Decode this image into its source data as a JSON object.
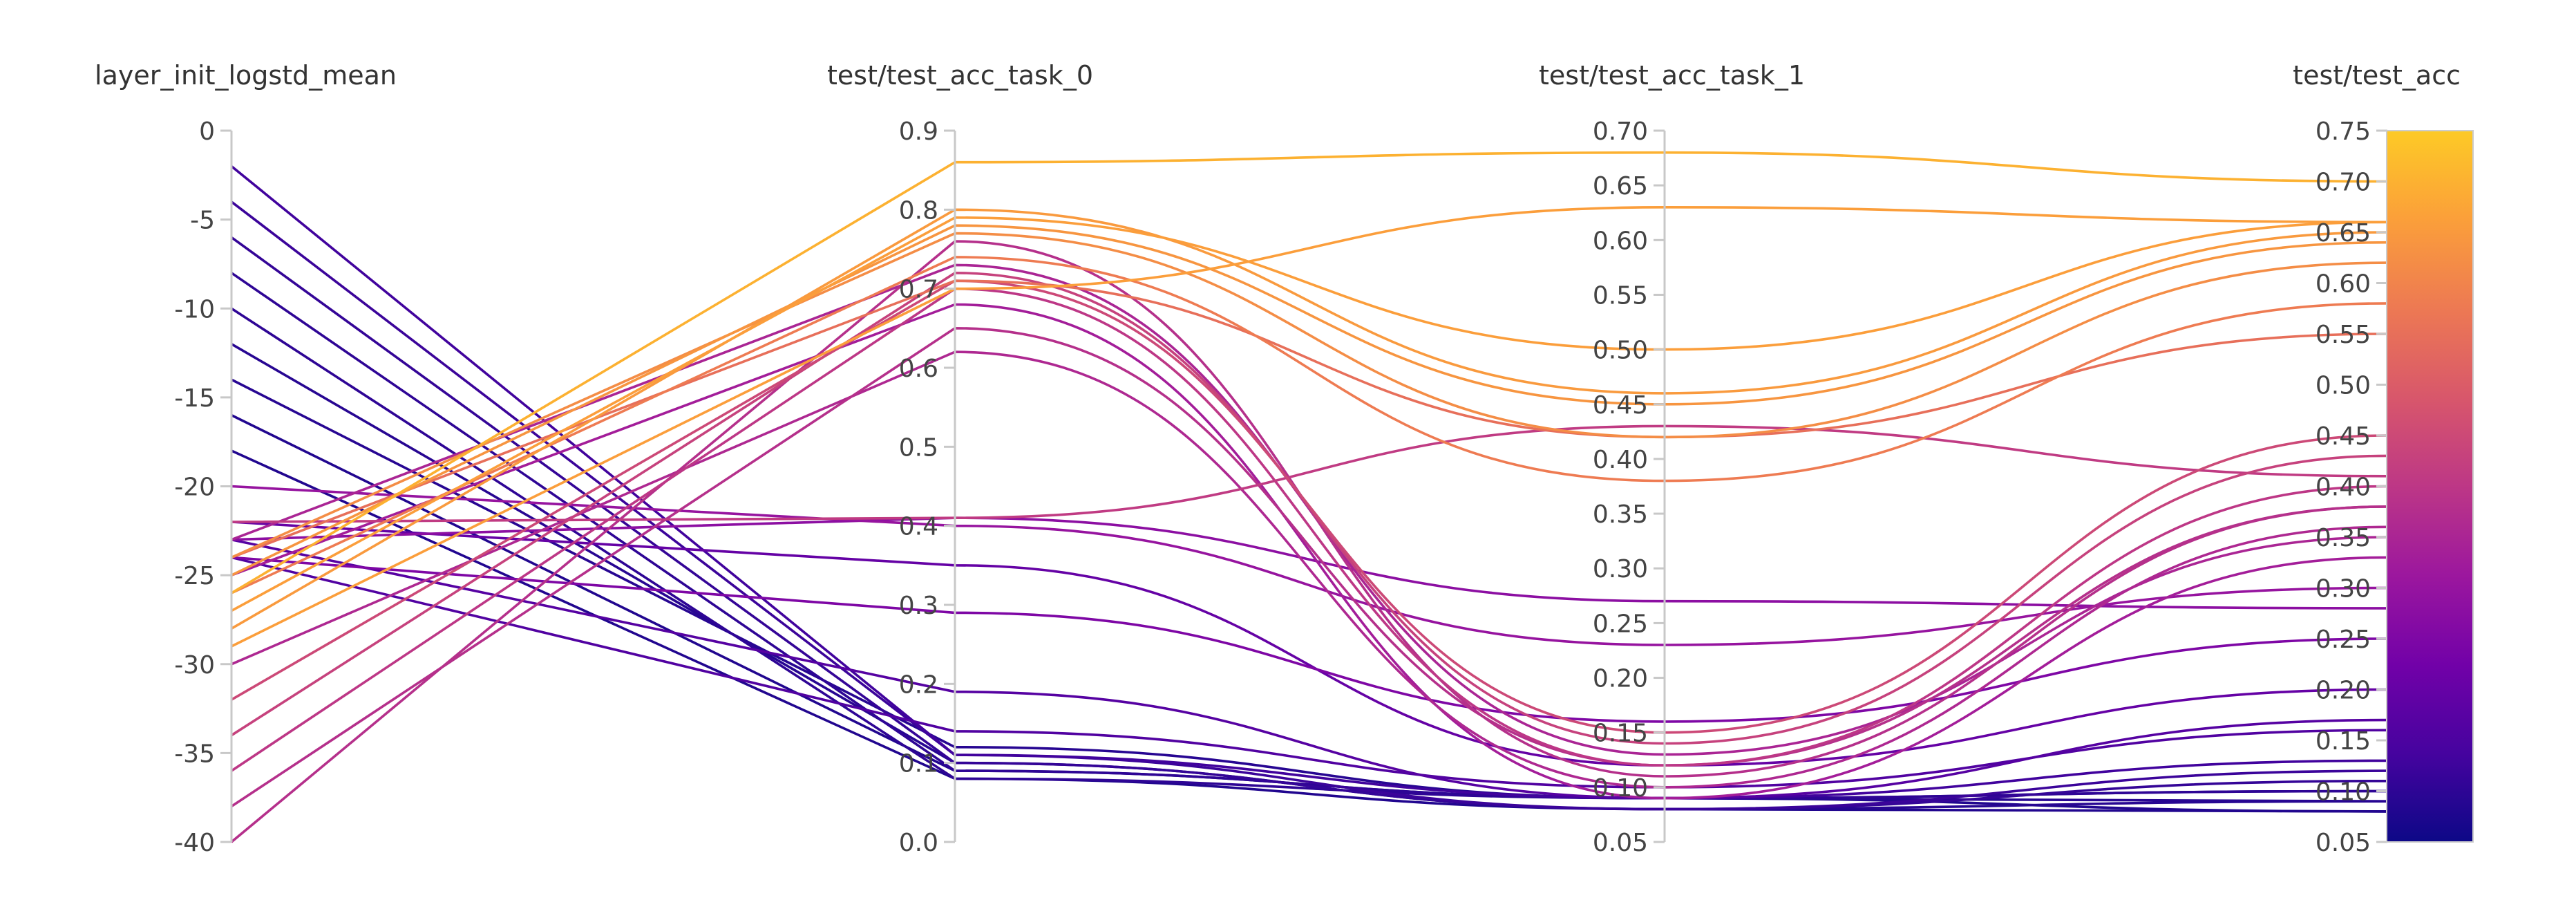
{
  "chart_data": {
    "type": "parallel-coordinates",
    "axes": [
      {
        "name": "layer_init_logstd_mean",
        "range": [
          -40,
          0
        ],
        "ticks": [
          "-40",
          "-35",
          "-30",
          "-25",
          "-20",
          "-15",
          "-10",
          "-5",
          "0"
        ]
      },
      {
        "name": "test/test_acc_task_0",
        "range": [
          0,
          0.9
        ],
        "ticks": [
          "0.0",
          "0.1",
          "0.2",
          "0.3",
          "0.4",
          "0.5",
          "0.6",
          "0.7",
          "0.8",
          "0.9"
        ]
      },
      {
        "name": "test/test_acc_task_1",
        "range": [
          0.05,
          0.7
        ],
        "ticks": [
          "0.05",
          "0.10",
          "0.15",
          "0.20",
          "0.25",
          "0.30",
          "0.35",
          "0.40",
          "0.45",
          "0.50",
          "0.55",
          "0.60",
          "0.65",
          "0.70"
        ]
      },
      {
        "name": "test/test_acc",
        "range": [
          0.05,
          0.75
        ],
        "ticks": [
          "0.05",
          "0.10",
          "0.15",
          "0.20",
          "0.25",
          "0.30",
          "0.35",
          "0.40",
          "0.45",
          "0.50",
          "0.55",
          "0.60",
          "0.65",
          "0.70",
          "0.75"
        ]
      }
    ],
    "color_axis": "test/test_acc",
    "colorscale": [
      "#0d0887",
      "#46039f",
      "#7201a8",
      "#9c179e",
      "#bd3786",
      "#d8576b",
      "#ed7953",
      "#fb9f3a",
      "#fdca26"
    ],
    "runs": [
      [
        -26,
        0.86,
        0.68,
        0.7
      ],
      [
        -27,
        0.79,
        0.5,
        0.66
      ],
      [
        -28,
        0.8,
        0.46,
        0.65
      ],
      [
        -29,
        0.7,
        0.63,
        0.66
      ],
      [
        -25,
        0.78,
        0.45,
        0.64
      ],
      [
        -24,
        0.77,
        0.42,
        0.62
      ],
      [
        -26,
        0.74,
        0.38,
        0.58
      ],
      [
        -24,
        0.71,
        0.42,
        0.55
      ],
      [
        -22,
        0.41,
        0.43,
        0.41
      ],
      [
        -32,
        0.71,
        0.15,
        0.45
      ],
      [
        -34,
        0.72,
        0.14,
        0.43
      ],
      [
        -36,
        0.7,
        0.12,
        0.4
      ],
      [
        -38,
        0.65,
        0.12,
        0.38
      ],
      [
        -40,
        0.76,
        0.11,
        0.38
      ],
      [
        -30,
        0.62,
        0.1,
        0.36
      ],
      [
        -23,
        0.73,
        0.13,
        0.35
      ],
      [
        -25,
        0.68,
        0.09,
        0.33
      ],
      [
        -20,
        0.4,
        0.23,
        0.3
      ],
      [
        -23,
        0.41,
        0.27,
        0.28
      ],
      [
        -24,
        0.29,
        0.16,
        0.25
      ],
      [
        -22,
        0.35,
        0.12,
        0.2
      ],
      [
        -23,
        0.19,
        0.09,
        0.17
      ],
      [
        -24,
        0.14,
        0.1,
        0.16
      ],
      [
        -2,
        0.11,
        0.09,
        0.13
      ],
      [
        -4,
        0.11,
        0.08,
        0.12
      ],
      [
        -6,
        0.1,
        0.08,
        0.11
      ],
      [
        -8,
        0.09,
        0.09,
        0.1
      ],
      [
        -10,
        0.08,
        0.09,
        0.1
      ],
      [
        -12,
        0.1,
        0.08,
        0.09
      ],
      [
        -14,
        0.12,
        0.09,
        0.09
      ],
      [
        -16,
        0.09,
        0.09,
        0.08
      ],
      [
        -18,
        0.08,
        0.08,
        0.08
      ]
    ]
  }
}
